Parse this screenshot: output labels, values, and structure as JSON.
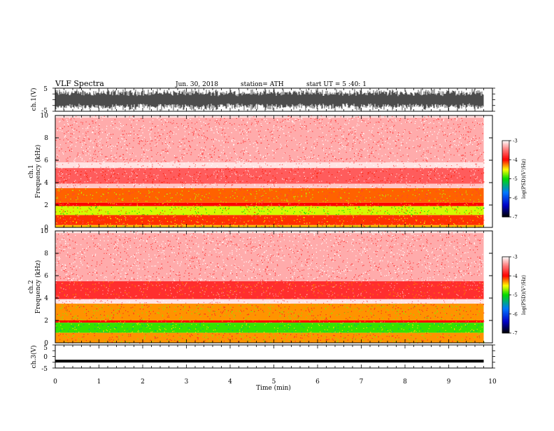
{
  "header": {
    "title": "VLF Spectra",
    "date": "Jun. 30, 2018",
    "station": "station= ATH",
    "start": "start UT = 5 :40: 1"
  },
  "chart_data": [
    {
      "type": "line",
      "ylabel": "ch.1(V)",
      "ylim": [
        -5,
        5
      ],
      "y_ticks": [
        "5",
        "-5"
      ],
      "content": "dense waveform nearly filling the full range",
      "xlim": [
        0,
        10
      ]
    },
    {
      "type": "heatmap",
      "ylabel_top": "ch.1",
      "ylabel": "Frequency (kHz)",
      "ylim": [
        0,
        10
      ],
      "y_ticks": [
        "0",
        "2",
        "4",
        "6",
        "8",
        "10"
      ],
      "xlim": [
        0,
        9.8
      ],
      "colorbar": {
        "label": "log(PSD)(V²/Hz)",
        "ticks": [
          "-3",
          "-4",
          "-5",
          "-6",
          "-7"
        ],
        "range": [
          -7,
          -3
        ]
      },
      "bands": [
        {
          "f_low": 9.8,
          "f_high": 10.0,
          "log_psd": -3.1
        },
        {
          "f_low": 5.8,
          "f_high": 9.8,
          "log_psd": -3.3
        },
        {
          "f_low": 5.3,
          "f_high": 5.8,
          "log_psd": -3.1
        },
        {
          "f_low": 3.9,
          "f_high": 5.3,
          "log_psd": -3.6
        },
        {
          "f_low": 3.5,
          "f_high": 3.9,
          "log_psd": -3.2
        },
        {
          "f_low": 2.2,
          "f_high": 3.5,
          "log_psd": -4.2
        },
        {
          "f_low": 1.9,
          "f_high": 2.2,
          "log_psd": -4.0
        },
        {
          "f_low": 1.1,
          "f_high": 1.9,
          "log_psd": -4.6
        },
        {
          "f_low": 0.2,
          "f_high": 1.1,
          "log_psd": -4.1
        },
        {
          "f_low": 0.0,
          "f_high": 0.2,
          "log_psd": -4.4
        }
      ]
    },
    {
      "type": "heatmap",
      "ylabel_top": "ch.2",
      "ylabel": "Frequency (kHz)",
      "ylim": [
        0,
        10
      ],
      "y_ticks": [
        "0",
        "2",
        "4",
        "6",
        "8",
        "10"
      ],
      "xlim": [
        0,
        9.8
      ],
      "colorbar": {
        "label": "log(PSD)(V²/Hz)",
        "ticks": [
          "-3",
          "-4",
          "-5",
          "-6",
          "-7"
        ],
        "range": [
          -7,
          -3
        ]
      },
      "bands": [
        {
          "f_low": 9.8,
          "f_high": 10.0,
          "log_psd": -3.1
        },
        {
          "f_low": 5.5,
          "f_high": 9.8,
          "log_psd": -3.3
        },
        {
          "f_low": 3.9,
          "f_high": 5.5,
          "log_psd": -3.8
        },
        {
          "f_low": 3.5,
          "f_high": 3.9,
          "log_psd": -3.1
        },
        {
          "f_low": 2.0,
          "f_high": 3.5,
          "log_psd": -4.3
        },
        {
          "f_low": 1.8,
          "f_high": 2.0,
          "log_psd": -4.0
        },
        {
          "f_low": 0.9,
          "f_high": 1.8,
          "log_psd": -4.9
        },
        {
          "f_low": 0.0,
          "f_high": 0.9,
          "log_psd": -4.3
        }
      ]
    },
    {
      "type": "line",
      "ylabel": "ch.3(V)",
      "ylim": [
        -5,
        5
      ],
      "y_ticks": [
        "5",
        "0",
        "-5"
      ],
      "value": -2,
      "xlim": [
        0,
        9.8
      ],
      "xlabel": "Time (min)",
      "x_ticks": [
        "0",
        "1",
        "2",
        "3",
        "4",
        "5",
        "6",
        "7",
        "8",
        "9",
        "10"
      ]
    }
  ]
}
